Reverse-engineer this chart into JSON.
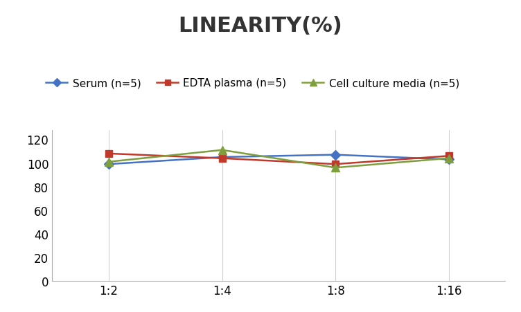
{
  "title": "LINEARITY(%)",
  "x_labels": [
    "1∶2",
    "1∶4",
    "1∶8",
    "1∶16"
  ],
  "x_positions": [
    0,
    1,
    2,
    3
  ],
  "series": [
    {
      "name": "Serum (n=5)",
      "values": [
        99,
        105,
        107,
        103
      ],
      "color": "#4472C4",
      "marker": "D",
      "marker_size": 7,
      "linewidth": 1.8
    },
    {
      "name": "EDTA plasma (n=5)",
      "values": [
        108,
        104,
        99,
        106
      ],
      "color": "#C0392B",
      "marker": "s",
      "marker_size": 7,
      "linewidth": 1.8
    },
    {
      "name": "Cell culture media (n=5)",
      "values": [
        101,
        111,
        96,
        104
      ],
      "color": "#7F9F3F",
      "marker": "^",
      "marker_size": 8,
      "linewidth": 1.8
    }
  ],
  "ylim": [
    0,
    128
  ],
  "yticks": [
    0,
    20,
    40,
    60,
    80,
    100,
    120
  ],
  "background_color": "#ffffff",
  "title_fontsize": 22,
  "title_fontweight": "bold",
  "tick_fontsize": 12,
  "legend_fontsize": 11,
  "grid_color": "#d0d0d0",
  "x_labels_display": [
    "1:2",
    "1:4",
    "1:8",
    "1:16"
  ]
}
